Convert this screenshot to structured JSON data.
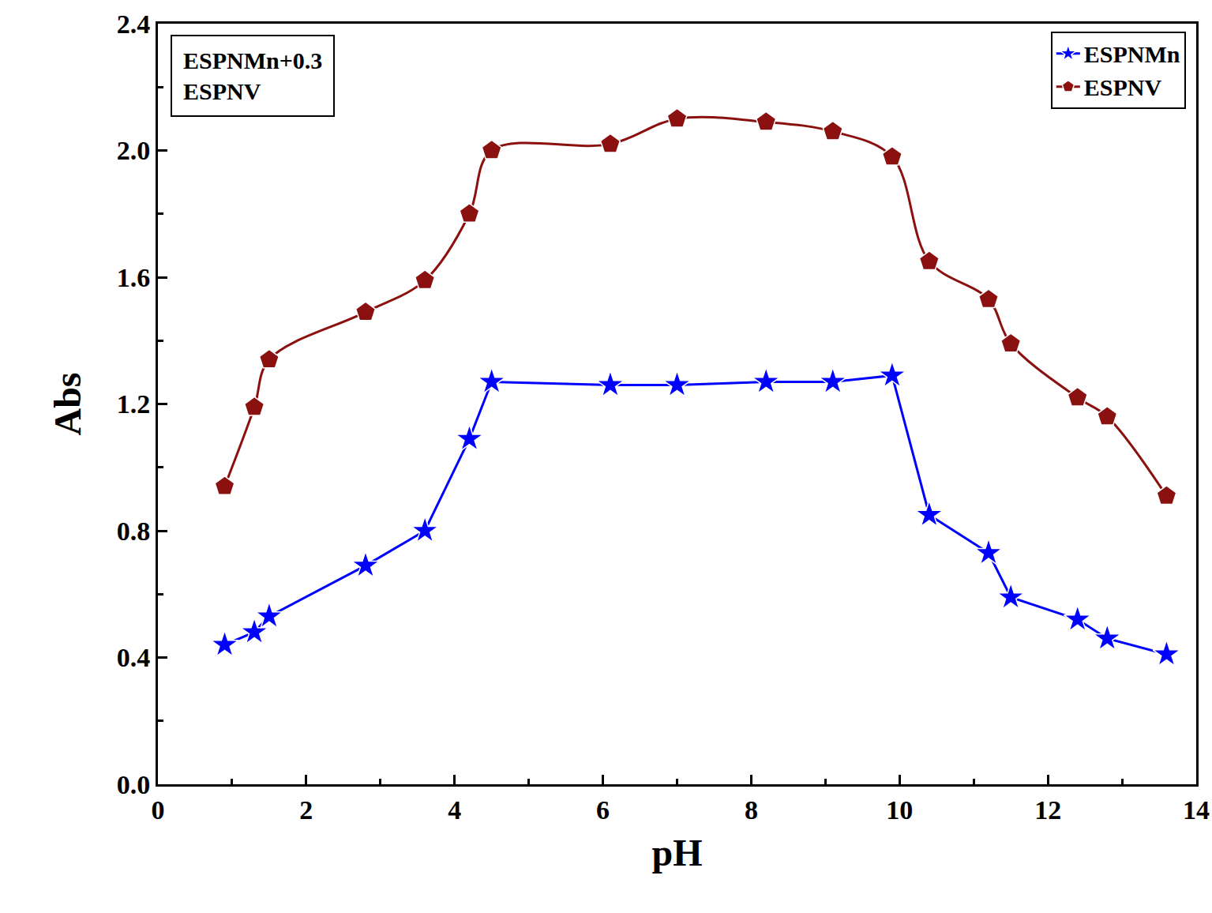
{
  "chart_data": {
    "type": "line",
    "x_label": "pH",
    "y_label": "Abs",
    "annotation": [
      "ESPNMn+0.3",
      "ESPNV"
    ],
    "xlim": [
      0,
      14
    ],
    "xticks": [
      0,
      2,
      4,
      6,
      8,
      10,
      12,
      14
    ],
    "ylim": [
      0,
      2.4
    ],
    "yticks": [
      {
        "value": 0,
        "label": "0.0"
      },
      0.4,
      0.8,
      1.2,
      1.6,
      {
        "value": 2,
        "label": "2.0"
      },
      2.4
    ],
    "grid": false,
    "legend": "top-right",
    "series": [
      {
        "name": "ESPNMn",
        "color": "#0000ff",
        "marker": "star",
        "line_style": "straight",
        "x": [
          0.9,
          1.3,
          1.5,
          2.8,
          3.6,
          4.2,
          4.5,
          6.1,
          7.0,
          8.2,
          9.1,
          9.9,
          10.4,
          11.2,
          11.5,
          12.4,
          12.8,
          13.6
        ],
        "values": [
          0.44,
          0.48,
          0.53,
          0.69,
          0.8,
          1.09,
          1.27,
          1.26,
          1.26,
          1.27,
          1.27,
          1.29,
          0.85,
          0.73,
          0.59,
          0.52,
          0.46,
          0.41
        ]
      },
      {
        "name": "ESPNV",
        "color": "#8b1010",
        "marker": "pentagon",
        "line_style": "smooth",
        "x": [
          0.9,
          1.3,
          1.5,
          2.8,
          3.6,
          4.2,
          4.5,
          6.1,
          7.0,
          8.2,
          9.1,
          9.9,
          10.4,
          11.2,
          11.5,
          12.4,
          12.8,
          13.6
        ],
        "values": [
          0.94,
          1.19,
          1.34,
          1.49,
          1.59,
          1.8,
          2.0,
          2.02,
          2.1,
          2.09,
          2.06,
          1.98,
          1.65,
          1.53,
          1.39,
          1.22,
          1.16,
          0.91
        ]
      }
    ]
  }
}
